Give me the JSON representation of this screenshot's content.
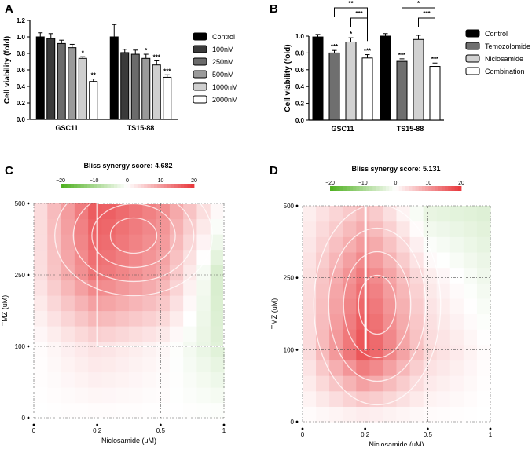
{
  "panels": {
    "a": {
      "letter": "A"
    },
    "b": {
      "letter": "B"
    },
    "c": {
      "letter": "C"
    },
    "d": {
      "letter": "D"
    }
  },
  "colors": {
    "synergy_high": "#e8363a",
    "synergy_low": "#4caf1c",
    "contour": "#ffffff"
  },
  "chart_data": [
    {
      "id": "panel-a",
      "type": "bar",
      "title": "",
      "xlabel": "",
      "ylabel": "Cell viability (fold)",
      "ylim": [
        0,
        1.2
      ],
      "yticks": [
        "0.0",
        "0.2",
        "0.4",
        "0.6",
        "0.8",
        "1.0",
        "1.2"
      ],
      "categories": [
        "GSC11",
        "TS15-88"
      ],
      "legend_position": "right",
      "series": [
        {
          "name": "Control",
          "fill": "#000000",
          "values": [
            1.0,
            1.0
          ],
          "errors": [
            0.05,
            0.15
          ],
          "labels": [
            "",
            ""
          ]
        },
        {
          "name": "100nM",
          "fill": "#3a3a3a",
          "values": [
            0.98,
            0.81
          ],
          "errors": [
            0.06,
            0.04
          ],
          "labels": [
            "",
            ""
          ]
        },
        {
          "name": "250nM",
          "fill": "#6b6b6b",
          "values": [
            0.92,
            0.79
          ],
          "errors": [
            0.04,
            0.05
          ],
          "labels": [
            "",
            ""
          ]
        },
        {
          "name": "500nM",
          "fill": "#9a9a9a",
          "values": [
            0.87,
            0.74
          ],
          "errors": [
            0.04,
            0.05
          ],
          "labels": [
            "",
            "*"
          ]
        },
        {
          "name": "1000nM",
          "fill": "#cfcfcf",
          "values": [
            0.74,
            0.66
          ],
          "errors": [
            0.02,
            0.05
          ],
          "labels": [
            "*",
            "***"
          ]
        },
        {
          "name": "2000nM",
          "fill": "#ffffff",
          "values": [
            0.46,
            0.51
          ],
          "errors": [
            0.03,
            0.03
          ],
          "labels": [
            "**",
            "***"
          ]
        }
      ]
    },
    {
      "id": "panel-b",
      "type": "bar",
      "title": "",
      "xlabel": "",
      "ylabel": "Cell viability (fold)",
      "ylim": [
        0,
        1.0
      ],
      "yticks": [
        "0.0",
        "0.2",
        "0.4",
        "0.6",
        "0.8",
        "1.0"
      ],
      "categories": [
        "GSC11",
        "TS15-88"
      ],
      "legend_position": "right",
      "series": [
        {
          "name": "Control",
          "fill": "#000000",
          "values": [
            0.99,
            1.0
          ],
          "errors": [
            0.03,
            0.03
          ],
          "labels": [
            "",
            ""
          ]
        },
        {
          "name": "Temozolomide",
          "fill": "#6f6f6f",
          "values": [
            0.8,
            0.7
          ],
          "errors": [
            0.03,
            0.03
          ],
          "labels": [
            "***",
            "***"
          ]
        },
        {
          "name": "Niclosamide",
          "fill": "#d2d2d2",
          "values": [
            0.93,
            0.96
          ],
          "errors": [
            0.05,
            0.05
          ],
          "labels": [
            "*",
            ""
          ]
        },
        {
          "name": "Combination",
          "fill": "#ffffff",
          "values": [
            0.74,
            0.64
          ],
          "errors": [
            0.04,
            0.04
          ],
          "labels": [
            "***",
            "***"
          ]
        }
      ],
      "significance": [
        {
          "group": 0,
          "from": 1,
          "to": 3,
          "level": 2,
          "label": "**"
        },
        {
          "group": 0,
          "from": 2,
          "to": 3,
          "level": 1,
          "label": "***"
        },
        {
          "group": 1,
          "from": 1,
          "to": 3,
          "level": 2,
          "label": "*"
        },
        {
          "group": 1,
          "from": 2,
          "to": 3,
          "level": 1,
          "label": "***"
        }
      ]
    },
    {
      "id": "panel-c",
      "type": "heatmap",
      "title": "Bliss synergy score: 4.682",
      "xlabel": "Niclosamide (uM)",
      "ylabel": "TMZ (uM)",
      "x_doses": [
        "0",
        "0.2",
        "0.5",
        "1"
      ],
      "y_doses": [
        "0",
        "100",
        "250",
        "500"
      ],
      "colorbar": {
        "ticks": [
          "−20",
          "−10",
          "0",
          "10",
          "20"
        ],
        "range": [
          -20,
          20
        ]
      },
      "max_region": {
        "x": [
          "0.2",
          "1"
        ],
        "y": [
          "100",
          "500"
        ]
      },
      "values": [
        [
          0,
          0,
          0,
          0
        ],
        [
          0,
          3,
          1,
          -4
        ],
        [
          2,
          14,
          9,
          -6
        ],
        [
          2,
          17,
          12,
          0
        ]
      ]
    },
    {
      "id": "panel-d",
      "type": "heatmap",
      "title": "Bliss synergy score: 5.131",
      "xlabel": "Niclosamide (uM)",
      "ylabel": "TMZ (uM)",
      "x_doses": [
        "0",
        "0.2",
        "0.5",
        "1"
      ],
      "y_doses": [
        "0",
        "100",
        "250",
        "500"
      ],
      "colorbar": {
        "ticks": [
          "−20",
          "−10",
          "0",
          "10",
          "20"
        ],
        "range": [
          -20,
          20
        ]
      },
      "max_region": {
        "x": [
          "0.2",
          "0.2"
        ],
        "y": [
          "100",
          "500"
        ]
      },
      "values": [
        [
          0,
          0,
          0,
          0
        ],
        [
          2,
          18,
          4,
          0
        ],
        [
          2,
          14,
          2,
          -2
        ],
        [
          1,
          6,
          -3,
          -4
        ]
      ]
    }
  ]
}
